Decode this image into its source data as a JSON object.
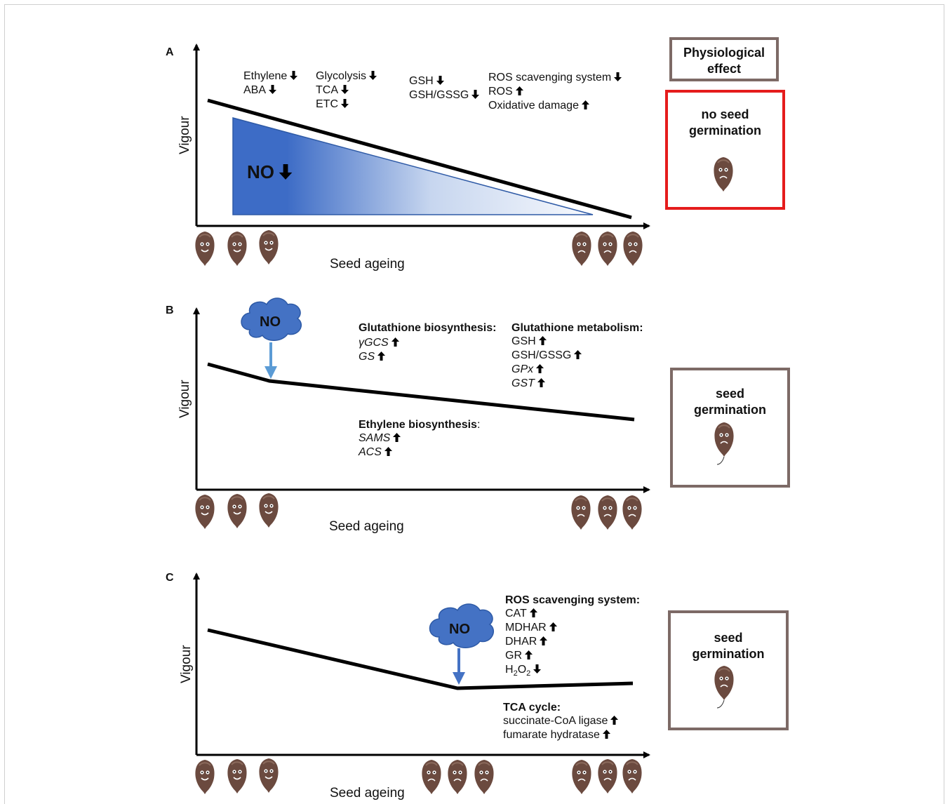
{
  "panels": {
    "a": {
      "letter": "A",
      "y_label": "Vigour",
      "x_label": "Seed ageing",
      "no_label": "NO",
      "no_trend": "down",
      "annotations": {
        "col1": [
          {
            "text": "Ethylene",
            "trend": "down"
          },
          {
            "text": "ABA",
            "trend": "down"
          }
        ],
        "col2": [
          {
            "text": "Glycolysis",
            "trend": "down"
          },
          {
            "text": "TCA",
            "trend": "down"
          },
          {
            "text": "ETC",
            "trend": "down"
          }
        ],
        "col3": [
          {
            "text": "GSH",
            "trend": "down"
          },
          {
            "text": "GSH/GSSG",
            "trend": "down"
          }
        ],
        "col4": [
          {
            "text": "ROS scavenging system",
            "trend": "down"
          },
          {
            "text": "ROS",
            "trend": "up"
          },
          {
            "text": "Oxidative damage",
            "trend": "up"
          }
        ]
      },
      "effect": "no seed germination",
      "effect_color": "#e51c1c"
    },
    "b": {
      "letter": "B",
      "y_label": "Vigour",
      "x_label": "Seed ageing",
      "cloud_label": "NO",
      "glut_bio_title": "Glutathione biosynthesis:",
      "glut_bio": [
        {
          "text": "γGCS",
          "trend": "up"
        },
        {
          "text": "GS",
          "trend": "up"
        }
      ],
      "glut_met_title": "Glutathione metabolism:",
      "glut_met": [
        {
          "text": "GSH",
          "trend": "up"
        },
        {
          "text": "GSH/GSSG",
          "trend": "up"
        },
        {
          "text": "GPx",
          "trend": "up"
        },
        {
          "text": "GST",
          "trend": "up"
        }
      ],
      "eth_title": "Ethylene biosynthesis",
      "eth": [
        {
          "text": "SAMS",
          "trend": "up"
        },
        {
          "text": "ACS",
          "trend": "up"
        }
      ],
      "effect": "seed germination"
    },
    "c": {
      "letter": "C",
      "y_label": "Vigour",
      "x_label": "Seed ageing",
      "cloud_label": "NO",
      "ros_title": "ROS scavenging system:",
      "ros": [
        {
          "text": "CAT",
          "trend": "up"
        },
        {
          "text": "MDHAR",
          "trend": "up"
        },
        {
          "text": "DHAR",
          "trend": "up"
        },
        {
          "text": "GR",
          "trend": "up"
        },
        {
          "text": "H2O2",
          "trend": "down"
        }
      ],
      "tca_title": "TCA cycle:",
      "tca": [
        {
          "text": "succinate-CoA ligase",
          "trend": "up"
        },
        {
          "text": "fumarate hydratase",
          "trend": "up"
        }
      ],
      "effect": "seed germination"
    }
  },
  "header_box": "Physiological effect",
  "colors": {
    "seed": "#6b4a3f",
    "cloud": "#4472c4",
    "arrow_b": "#5b9bd5",
    "arrow_c": "#4472c4",
    "gradient_start": "#3f6fc8",
    "box_border": "#7d6a66"
  }
}
